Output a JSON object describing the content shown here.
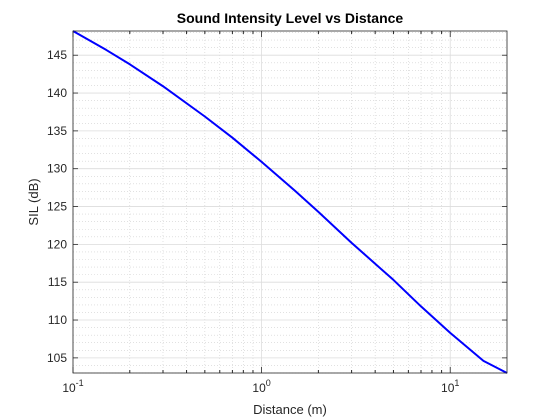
{
  "chart_data": {
    "type": "line",
    "title": "Sound Intensity Level vs Distance",
    "xlabel": "Distance (m)",
    "ylabel": "SIL (dB)",
    "x_scale": "log",
    "xlim": [
      0.1,
      20
    ],
    "ylim": [
      103,
      148.2
    ],
    "grid": true,
    "minor_grid": true,
    "x_ticks": [
      {
        "value": 0.1,
        "base": "10",
        "exp": "-1"
      },
      {
        "value": 1,
        "base": "10",
        "exp": "0"
      },
      {
        "value": 10,
        "base": "10",
        "exp": "1"
      }
    ],
    "y_ticks": [
      105,
      110,
      115,
      120,
      125,
      130,
      135,
      140,
      145
    ],
    "series": [
      {
        "color": "#0000ff",
        "x": [
          0.1,
          0.15,
          0.2,
          0.3,
          0.5,
          0.7,
          1,
          1.5,
          2,
          3,
          5,
          7,
          10,
          15,
          20
        ],
        "y": [
          148.2,
          145.7,
          143.8,
          140.9,
          136.9,
          134.1,
          130.9,
          127.1,
          124.3,
          120.2,
          115.3,
          111.8,
          108.3,
          104.6,
          103.0
        ]
      }
    ]
  }
}
